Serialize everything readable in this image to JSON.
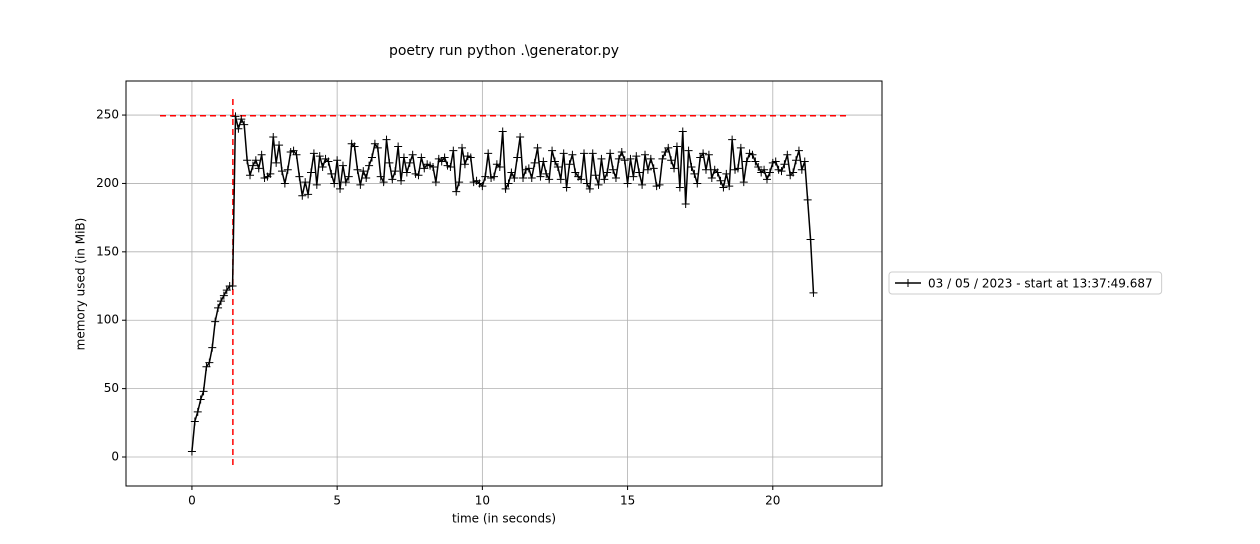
{
  "chart_data": {
    "type": "line",
    "title": "poetry run python .\\generator.py",
    "x_label": "time (in seconds)",
    "y_label": "memory used (in MiB)",
    "xlim": [
      -2.27,
      23.76
    ],
    "ylim": [
      -21.2,
      274.9
    ],
    "xticks": [
      0,
      5,
      10,
      15,
      20
    ],
    "yticks": [
      0,
      50,
      100,
      150,
      200,
      250
    ],
    "grid": true,
    "legend": "right",
    "max_marker": {
      "value": 249.5,
      "time": 1.41,
      "color": "#ff0000"
    },
    "series": [
      {
        "name": "03 / 05 / 2023 - start at 13:37:49.687",
        "color": "#000000",
        "x": [
          0,
          0.1,
          0.2,
          0.3,
          0.4,
          0.5,
          0.6,
          0.7,
          0.8,
          0.9,
          1,
          1.1,
          1.2,
          1.3,
          1.4,
          1.5,
          1.6,
          1.7,
          1.8,
          1.9,
          2,
          2.1,
          2.2,
          2.3,
          2.4,
          2.5,
          2.6,
          2.7,
          2.8,
          2.9,
          3,
          3.1,
          3.2,
          3.3,
          3.4,
          3.5,
          3.6,
          3.7,
          3.8,
          3.9,
          4,
          4.1,
          4.2,
          4.3,
          4.4,
          4.5,
          4.6,
          4.7,
          4.8,
          4.9,
          5,
          5.1,
          5.2,
          5.3,
          5.4,
          5.5,
          5.6,
          5.7,
          5.8,
          5.9,
          6,
          6.1,
          6.2,
          6.3,
          6.4,
          6.5,
          6.6,
          6.7,
          6.8,
          6.9,
          7,
          7.1,
          7.2,
          7.3,
          7.4,
          7.5,
          7.6,
          7.7,
          7.8,
          7.9,
          8,
          8.1,
          8.2,
          8.3,
          8.4,
          8.5,
          8.6,
          8.7,
          8.8,
          8.9,
          9,
          9.1,
          9.2,
          9.3,
          9.4,
          9.5,
          9.6,
          9.7,
          9.8,
          9.9,
          10,
          10.1,
          10.2,
          10.3,
          10.4,
          10.5,
          10.6,
          10.7,
          10.8,
          10.9,
          11,
          11.1,
          11.2,
          11.3,
          11.4,
          11.5,
          11.6,
          11.7,
          11.8,
          11.9,
          12,
          12.1,
          12.2,
          12.3,
          12.4,
          12.5,
          12.6,
          12.7,
          12.8,
          12.9,
          13,
          13.1,
          13.2,
          13.3,
          13.4,
          13.5,
          13.6,
          13.7,
          13.8,
          13.9,
          14,
          14.1,
          14.2,
          14.3,
          14.4,
          14.5,
          14.6,
          14.7,
          14.8,
          14.9,
          15,
          15.1,
          15.2,
          15.3,
          15.4,
          15.5,
          15.6,
          15.7,
          15.8,
          15.9,
          16,
          16.1,
          16.2,
          16.3,
          16.4,
          16.5,
          16.6,
          16.7,
          16.8,
          16.9,
          17,
          17.1,
          17.2,
          17.3,
          17.4,
          17.5,
          17.6,
          17.7,
          17.8,
          17.9,
          18,
          18.1,
          18.2,
          18.3,
          18.4,
          18.5,
          18.6,
          18.7,
          18.8,
          18.9,
          19,
          19.1,
          19.2,
          19.3,
          19.4,
          19.5,
          19.6,
          19.7,
          19.8,
          19.9,
          20,
          20.1,
          20.2,
          20.3,
          20.4,
          20.5,
          20.6,
          20.7,
          20.8,
          20.9,
          21,
          21.1,
          21.2,
          21.3,
          21.4
        ],
        "values": [
          4,
          26,
          33,
          42,
          48,
          66,
          69,
          80,
          99,
          109,
          114,
          118,
          122,
          125,
          125,
          249,
          240,
          247,
          243,
          217,
          206,
          213,
          217,
          211,
          221,
          204,
          205,
          207,
          234,
          215,
          228,
          209,
          200,
          210,
          223,
          224,
          221,
          205,
          191,
          201,
          192,
          208,
          222,
          199,
          220,
          212,
          218,
          216,
          207,
          200,
          217,
          196,
          213,
          201,
          205,
          229,
          227,
          210,
          199,
          209,
          204,
          213,
          219,
          229,
          226,
          205,
          201,
          232,
          215,
          203,
          209,
          227,
          202,
          219,
          208,
          215,
          221,
          207,
          206,
          219,
          211,
          214,
          213,
          212,
          201,
          218,
          216,
          219,
          213,
          212,
          224,
          194,
          201,
          226,
          214,
          220,
          219,
          201,
          202,
          200,
          198,
          205,
          222,
          204,
          205,
          214,
          212,
          238,
          196,
          200,
          208,
          204,
          219,
          234,
          204,
          210,
          211,
          204,
          215,
          226,
          205,
          216,
          207,
          203,
          224,
          216,
          212,
          203,
          222,
          197,
          214,
          221,
          208,
          205,
          203,
          222,
          200,
          196,
          222,
          206,
          199,
          218,
          203,
          208,
          222,
          210,
          204,
          218,
          223,
          217,
          200,
          218,
          205,
          220,
          208,
          199,
          221,
          210,
          218,
          211,
          198,
          199,
          218,
          223,
          226,
          217,
          211,
          227,
          197,
          238,
          185,
          224,
          212,
          207,
          200,
          219,
          222,
          210,
          221,
          204,
          210,
          208,
          202,
          197,
          207,
          198,
          232,
          210,
          211,
          226,
          201,
          216,
          222,
          221,
          216,
          212,
          208,
          210,
          203,
          208,
          215,
          216,
          210,
          209,
          214,
          221,
          206,
          208,
          217,
          224,
          210,
          216,
          188,
          159,
          120
        ]
      }
    ]
  }
}
